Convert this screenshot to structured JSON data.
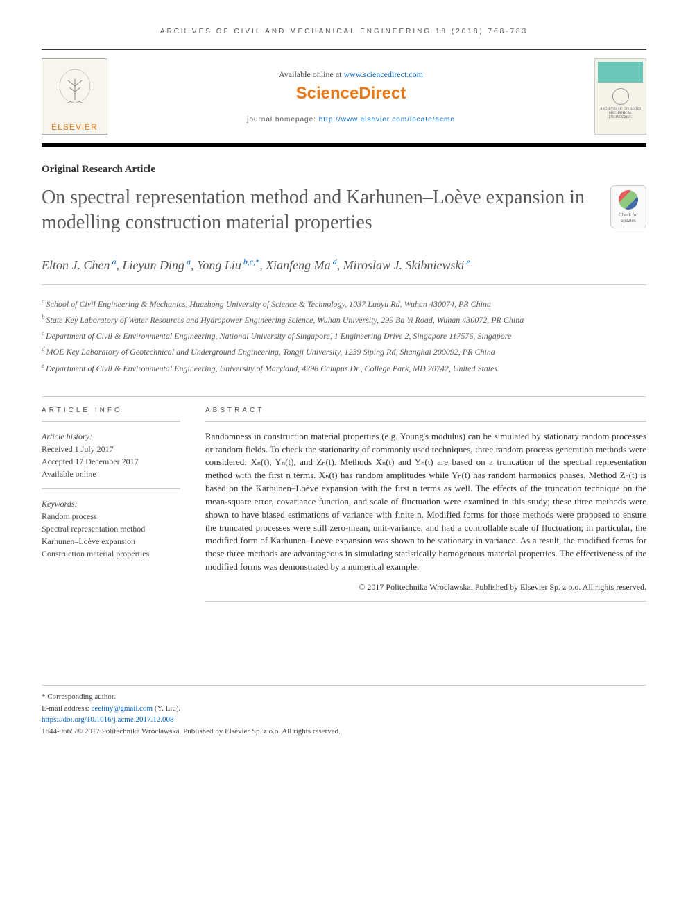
{
  "running_head": "ARCHIVES OF CIVIL AND MECHANICAL ENGINEERING 18 (2018) 768-783",
  "header": {
    "elsevier_label": "ELSEVIER",
    "available_text": "Available online at ",
    "available_url": "www.sciencedirect.com",
    "sd_brand": "ScienceDirect",
    "homepage_label": "journal homepage: ",
    "homepage_url": "http://www.elsevier.com/locate/acme",
    "cover_journal": "ARCHIVES OF CIVIL AND MECHANICAL ENGINEERING"
  },
  "article_type": "Original Research Article",
  "title": "On spectral representation method and Karhunen–Loève expansion in modelling construction material properties",
  "check_updates": "Check for updates",
  "authors": [
    {
      "name": "Elton J. Chen",
      "affs": "a"
    },
    {
      "name": "Lieyun Ding",
      "affs": "a"
    },
    {
      "name": "Yong Liu",
      "affs": "b,c,*"
    },
    {
      "name": "Xianfeng Ma",
      "affs": "d"
    },
    {
      "name": "Miroslaw J. Skibniewski",
      "affs": "e"
    }
  ],
  "affiliations": [
    {
      "sup": "a",
      "text": "School of Civil Engineering & Mechanics, Huazhong University of Science & Technology, 1037 Luoyu Rd, Wuhan 430074, PR China"
    },
    {
      "sup": "b",
      "text": "State Key Laboratory of Water Resources and Hydropower Engineering Science, Wuhan University, 299 Ba Yi Road, Wuhan 430072, PR China"
    },
    {
      "sup": "c",
      "text": "Department of Civil & Environmental Engineering, National University of Singapore, 1 Engineering Drive 2, Singapore 117576, Singapore"
    },
    {
      "sup": "d",
      "text": "MOE Key Laboratory of Geotechnical and Underground Engineering, Tongji University, 1239 Siping Rd, Shanghai 200092, PR China"
    },
    {
      "sup": "e",
      "text": "Department of Civil & Environmental Engineering, University of Maryland, 4298 Campus Dr., College Park, MD 20742, United States"
    }
  ],
  "info_head": "ARTICLE INFO",
  "abstract_head": "ABSTRACT",
  "history": {
    "label": "Article history:",
    "received": "Received 1 July 2017",
    "accepted": "Accepted 17 December 2017",
    "online": "Available online"
  },
  "keywords": {
    "label": "Keywords:",
    "items": [
      "Random process",
      "Spectral representation method",
      "Karhunen–Loève expansion",
      "Construction material properties"
    ]
  },
  "abstract": "Randomness in construction material properties (e.g. Young's modulus) can be simulated by stationary random processes or random fields. To check the stationarity of commonly used techniques, three random process generation methods were considered: Xₙ(t), Yₙ(t), and Zₙ(t). Methods Xₙ(t) and Yₙ(t) are based on a truncation of the spectral representation method with the first n terms. Xₙ(t) has random amplitudes while Yₙ(t) has random harmonics phases. Method Zₙ(t) is based on the Karhunen–Loève expansion with the first n terms as well. The effects of the truncation technique on the mean-square error, covariance function, and scale of fluctuation were examined in this study; these three methods were shown to have biased estimations of variance with finite n. Modified forms for those methods were proposed to ensure the truncated processes were still zero-mean, unit-variance, and had a controllable scale of fluctuation; in particular, the modified form of Karhunen–Loève expansion was shown to be stationary in variance. As a result, the modified forms for those three methods are advantageous in simulating statistically homogenous material properties. The effectiveness of the modified forms was demonstrated by a numerical example.",
  "copyright": "© 2017 Politechnika Wrocławska. Published by Elsevier Sp. z o.o. All rights reserved.",
  "footer": {
    "corr": "* Corresponding author.",
    "email_label": "E-mail address: ",
    "email": "ceeliuy@gmail.com",
    "email_name": " (Y. Liu).",
    "doi": "https://doi.org/10.1016/j.acme.2017.12.008",
    "issn": "1644-9665/© 2017 Politechnika Wrocławska. Published by Elsevier Sp. z o.o. All rights reserved."
  },
  "colors": {
    "orange": "#e67817",
    "link": "#0066cc",
    "teal": "#6bc5b8",
    "grey_text": "#5a5a5a"
  }
}
